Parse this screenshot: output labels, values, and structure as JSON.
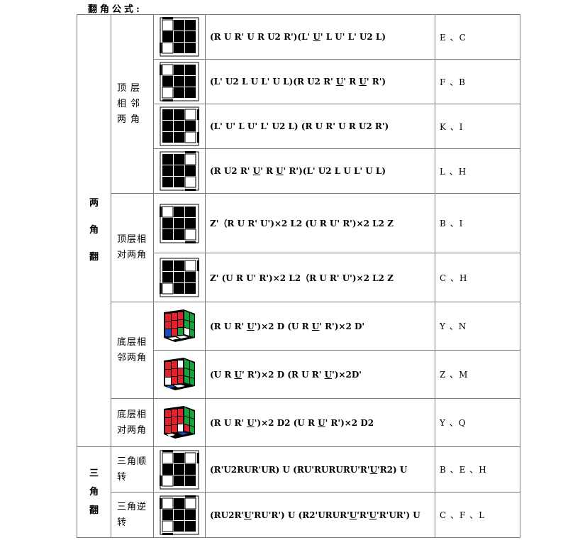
{
  "title": "翻角公式:",
  "groups": [
    {
      "category": "两角翻",
      "subgroups": [
        {
          "label": "顶层相邻两角",
          "rows": [
            {
              "formula": "(R U R' U R U2 R')(L' <u>U</u>' L U' L' U2 L)",
              "ref": "E 、C"
            },
            {
              "formula": "(L' U2 L U L' U L)(R U2 R' <u>U</u>' R <u>U</u>' R')",
              "ref": "F 、B"
            },
            {
              "formula": "(L' U' L U' L' U2 L) (R U R' U R U2 R')",
              "ref": "K 、I"
            },
            {
              "formula": "(R U2 R' <u>U</u>' R <u>U</u>' R')(L' U2 L U L' U L)",
              "ref": "L 、H"
            }
          ]
        },
        {
          "label": "顶层相对两角",
          "rows": [
            {
              "formula": "Z'（R U R' U')×2 L2 (U R U' R')×2 L2 Z",
              "ref": "B 、I"
            },
            {
              "formula": "Z' (U R U' R')×2 L2（R U R' U')×2 L2 Z",
              "ref": "C 、H"
            }
          ]
        },
        {
          "label": "底层相邻两角",
          "rows": [
            {
              "formula": "(R U R' <u>U</u>')×2 D (U R <u>U</u>' R')×2 D'",
              "ref": "Y 、N"
            },
            {
              "formula": "(U R <u>U</u>' R')×2 D (R U R' <u>U</u>')×2D'",
              "ref": "Z 、M"
            }
          ]
        },
        {
          "label": "底层相对两角",
          "rows": [
            {
              "formula": "(R U R' <u>U</u>')×2 D2 (U R <u>U</u>' R')×2 D2",
              "ref": "Y 、Q"
            }
          ]
        }
      ]
    },
    {
      "category": "三角翻",
      "subgroups": [
        {
          "label": "三角顺转",
          "rows": [
            {
              "formula": "(R'U2RUR'UR) U (RU'RURURU'R'<u>U</u>'R2) U",
              "ref": "B 、E 、H"
            }
          ]
        },
        {
          "label": "三角逆转",
          "rows": [
            {
              "formula": "(RU2R'<u>U</u>'RU'R') U (R2'URUR'<u>U</u>'R'<u>U</u>'R'UR') U",
              "ref": "C 、F 、L"
            }
          ]
        }
      ]
    }
  ],
  "icons": {
    "r1": "cube-top-flip-r1-icon",
    "r2": "cube-top-flip-r2-icon",
    "r3": "cube-top-flip-r3-icon",
    "r4": "cube-top-flip-r4-icon",
    "r5": "cube-top-opp-r5-icon",
    "r6": "cube-top-opp-r6-icon",
    "r7": "cube-3d-red-green-icon",
    "r8": "cube-3d-red-white-icon",
    "r9": "cube-3d-red-green-icon",
    "r10": "cube-top-triple-cw-icon",
    "r11": "cube-top-triple-ccw-icon"
  },
  "colors": {
    "sticker": "#000000",
    "red": "#e2232d",
    "green": "#16a33a",
    "blue": "#1c49c4",
    "white": "#ffffff"
  }
}
